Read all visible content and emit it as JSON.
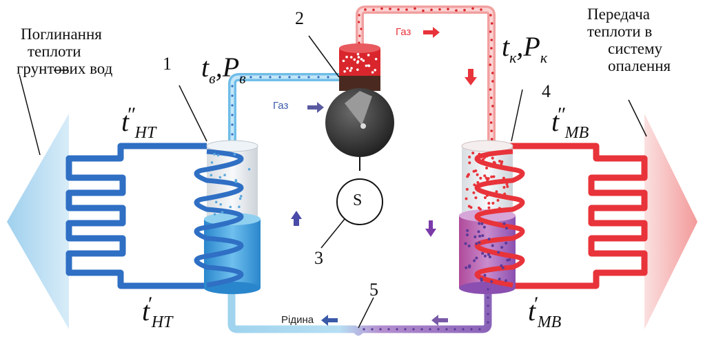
{
  "labels": {
    "left_caption": [
      "Поглинання",
      "теплоти",
      "грунтових  вод"
    ],
    "right_caption": [
      "Передача",
      "теплоти в",
      "систему",
      "опалення"
    ],
    "numbers": [
      "1",
      "2",
      "3",
      "4",
      "5"
    ],
    "evaporator_params": {
      "t": "t",
      "t_sub": "в",
      "sep": ",",
      "p": "P",
      "p_sub": "в"
    },
    "condenser_params": {
      "t": "t",
      "t_sub": "к",
      "sep": ",",
      "p": "P",
      "p_sub": "к"
    },
    "tnt_out": {
      "sym": "t",
      "prime": "″",
      "sub": "НТ"
    },
    "tnt_in": {
      "sym": "t",
      "prime": "′",
      "sub": "НТ"
    },
    "tmv_out": {
      "sym": "t",
      "prime": "″",
      "sub": "МВ"
    },
    "tmv_in": {
      "sym": "t",
      "prime": "′",
      "sub": "МВ"
    },
    "gas_left": "Газ",
    "gas_right": "Газ",
    "liquid": "Рідина",
    "motor": "S"
  },
  "colors": {
    "cold": "#2f6fc4",
    "cold_light": "#9fd3ee",
    "hot": "#e8333a",
    "hot_light": "#f3a3a3",
    "liquid_cold": "#3a9ad8",
    "liquid_hot": "#9b5fb8",
    "arrow_purple": "#7a5aa8"
  }
}
